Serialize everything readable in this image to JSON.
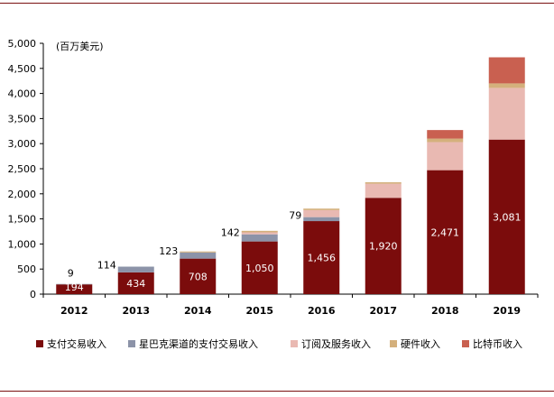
{
  "chart_data": {
    "type": "bar",
    "stacked": true,
    "unit_label": "(百万美元)",
    "categories": [
      "2012",
      "2013",
      "2014",
      "2015",
      "2016",
      "2017",
      "2018",
      "2019"
    ],
    "ylim": [
      0,
      5000
    ],
    "yticks": [
      0,
      500,
      1000,
      1500,
      2000,
      2500,
      3000,
      3500,
      4000,
      4500,
      5000
    ],
    "ytick_labels": [
      "0",
      "500",
      "1,000",
      "1,500",
      "2,000",
      "2,500",
      "3,000",
      "3,500",
      "4,000",
      "4,500",
      "5,000"
    ],
    "legend_position": "bottom",
    "series": [
      {
        "name": "支付交易收入",
        "color": "#7b0c0c",
        "values": [
          194,
          434,
          708,
          1050,
          1456,
          1920,
          2471,
          3081
        ],
        "labels": [
          "194",
          "434",
          "708",
          "1,050",
          "1,456",
          "1,920",
          "2,471",
          "3,081"
        ]
      },
      {
        "name": "星巴克渠道的支付交易收入",
        "color": "#8c93a8",
        "values": [
          9,
          114,
          123,
          142,
          79,
          0,
          0,
          0
        ],
        "labels": [
          "9",
          "114",
          "123",
          "142",
          "79",
          "",
          "",
          ""
        ]
      },
      {
        "name": "订阅及服务收入",
        "color": "#e9b9b2",
        "values": [
          0,
          0,
          0,
          40,
          140,
          280,
          560,
          1030
        ],
        "labels": [
          "",
          "",
          "",
          "",
          "",
          "",
          "",
          ""
        ]
      },
      {
        "name": "硬件收入",
        "color": "#d4b07c",
        "values": [
          0,
          0,
          20,
          30,
          30,
          30,
          70,
          90
        ],
        "labels": [
          "",
          "",
          "",
          "",
          "",
          "",
          "",
          ""
        ]
      },
      {
        "name": "比特币收入",
        "color": "#c96050",
        "values": [
          0,
          0,
          0,
          0,
          0,
          0,
          170,
          520
        ],
        "labels": [
          "",
          "",
          "",
          "",
          "",
          "",
          "",
          ""
        ]
      }
    ]
  }
}
